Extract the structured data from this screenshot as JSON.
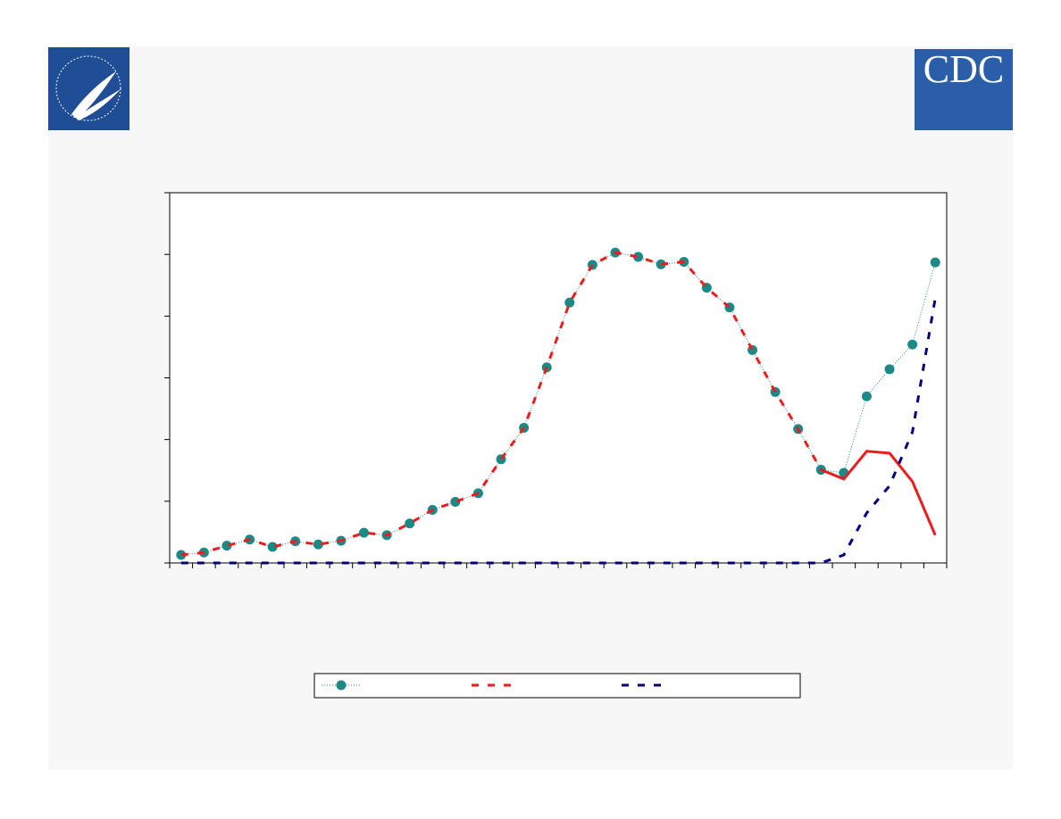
{
  "logo_text": "CDC",
  "chart_data": {
    "type": "line",
    "categories": [
      null,
      null,
      null,
      null,
      null,
      null,
      null,
      null,
      null,
      null,
      null,
      null,
      null,
      null,
      null,
      null,
      null,
      null,
      null,
      null,
      null,
      null,
      null,
      null,
      null,
      null,
      null,
      null,
      null,
      null,
      null,
      null,
      null,
      null
    ],
    "ylim": [
      0,
      6
    ],
    "yticks": [
      0,
      1,
      2,
      3,
      4,
      5,
      6
    ],
    "series": [
      {
        "color": "#1b8a86",
        "dash": "dotted",
        "marker": "circle",
        "legend": true,
        "values": [
          0.13,
          0.17,
          0.28,
          0.38,
          0.26,
          0.35,
          0.3,
          0.36,
          0.49,
          0.45,
          0.64,
          0.86,
          0.99,
          1.13,
          1.68,
          2.19,
          3.17,
          4.22,
          4.83,
          5.03,
          4.96,
          4.84,
          4.88,
          4.46,
          4.14,
          3.45,
          2.77,
          2.17,
          1.51,
          1.46,
          2.7,
          3.14,
          3.54,
          4.87
        ]
      },
      {
        "color": "#ee1c1c",
        "dash": "dashed",
        "legend": true,
        "values": [
          0.13,
          0.17,
          0.28,
          0.38,
          0.26,
          0.35,
          0.3,
          0.36,
          0.49,
          0.45,
          0.64,
          0.86,
          0.99,
          1.13,
          1.68,
          2.19,
          3.17,
          4.22,
          4.83,
          5.03,
          4.96,
          4.84,
          4.88,
          4.46,
          4.14,
          3.45,
          2.77,
          2.17,
          1.51,
          null,
          null,
          null,
          null,
          null
        ]
      },
      {
        "color": "#ee1c1c",
        "dash": "solid",
        "legend": false,
        "values": [
          null,
          null,
          null,
          null,
          null,
          null,
          null,
          null,
          null,
          null,
          null,
          null,
          null,
          null,
          null,
          null,
          null,
          null,
          null,
          null,
          null,
          null,
          null,
          null,
          null,
          null,
          null,
          null,
          1.51,
          1.36,
          1.81,
          1.78,
          1.32,
          0.45
        ]
      },
      {
        "color": "#000080",
        "dash": "dashed",
        "legend": true,
        "values": [
          0,
          0,
          0,
          0,
          0,
          0,
          0,
          0,
          0,
          0,
          0,
          0,
          0,
          0,
          0,
          0,
          0,
          0,
          0,
          0,
          0,
          0,
          0,
          0,
          0,
          0,
          0,
          0,
          0,
          0.13,
          0.81,
          1.25,
          2.12,
          4.29
        ]
      }
    ]
  }
}
